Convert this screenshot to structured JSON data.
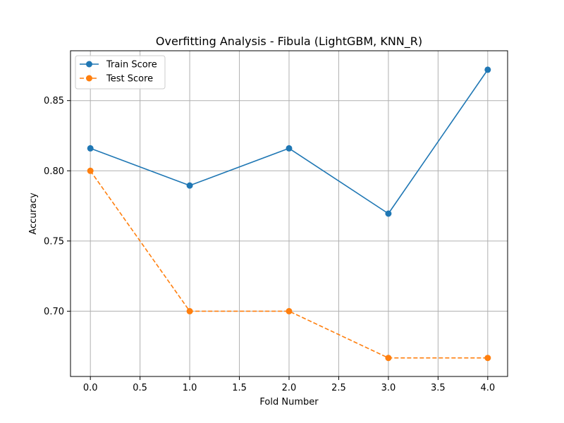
{
  "chart_data": {
    "type": "line",
    "title": "Overfitting Analysis - Fibula (LightGBM, KNN_R)",
    "xlabel": "Fold Number",
    "ylabel": "Accuracy",
    "x": [
      0,
      1,
      2,
      3,
      4
    ],
    "xlim": [
      -0.2,
      4.2
    ],
    "ylim": [
      0.6535,
      0.8855
    ],
    "xticks": [
      "0.0",
      "0.5",
      "1.0",
      "1.5",
      "2.0",
      "2.5",
      "3.0",
      "3.5",
      "4.0"
    ],
    "yticks": [
      "0.70",
      "0.75",
      "0.80",
      "0.85"
    ],
    "grid": true,
    "legend_position": "upper left",
    "series": [
      {
        "name": "Train Score",
        "values": [
          0.816,
          0.7895,
          0.816,
          0.7695,
          0.872
        ],
        "color": "#1f77b4",
        "linestyle": "solid",
        "marker": "circle"
      },
      {
        "name": "Test Score",
        "values": [
          0.8,
          0.7,
          0.7,
          0.6667,
          0.6667
        ],
        "color": "#ff7f0e",
        "linestyle": "dashed",
        "marker": "circle"
      }
    ]
  }
}
